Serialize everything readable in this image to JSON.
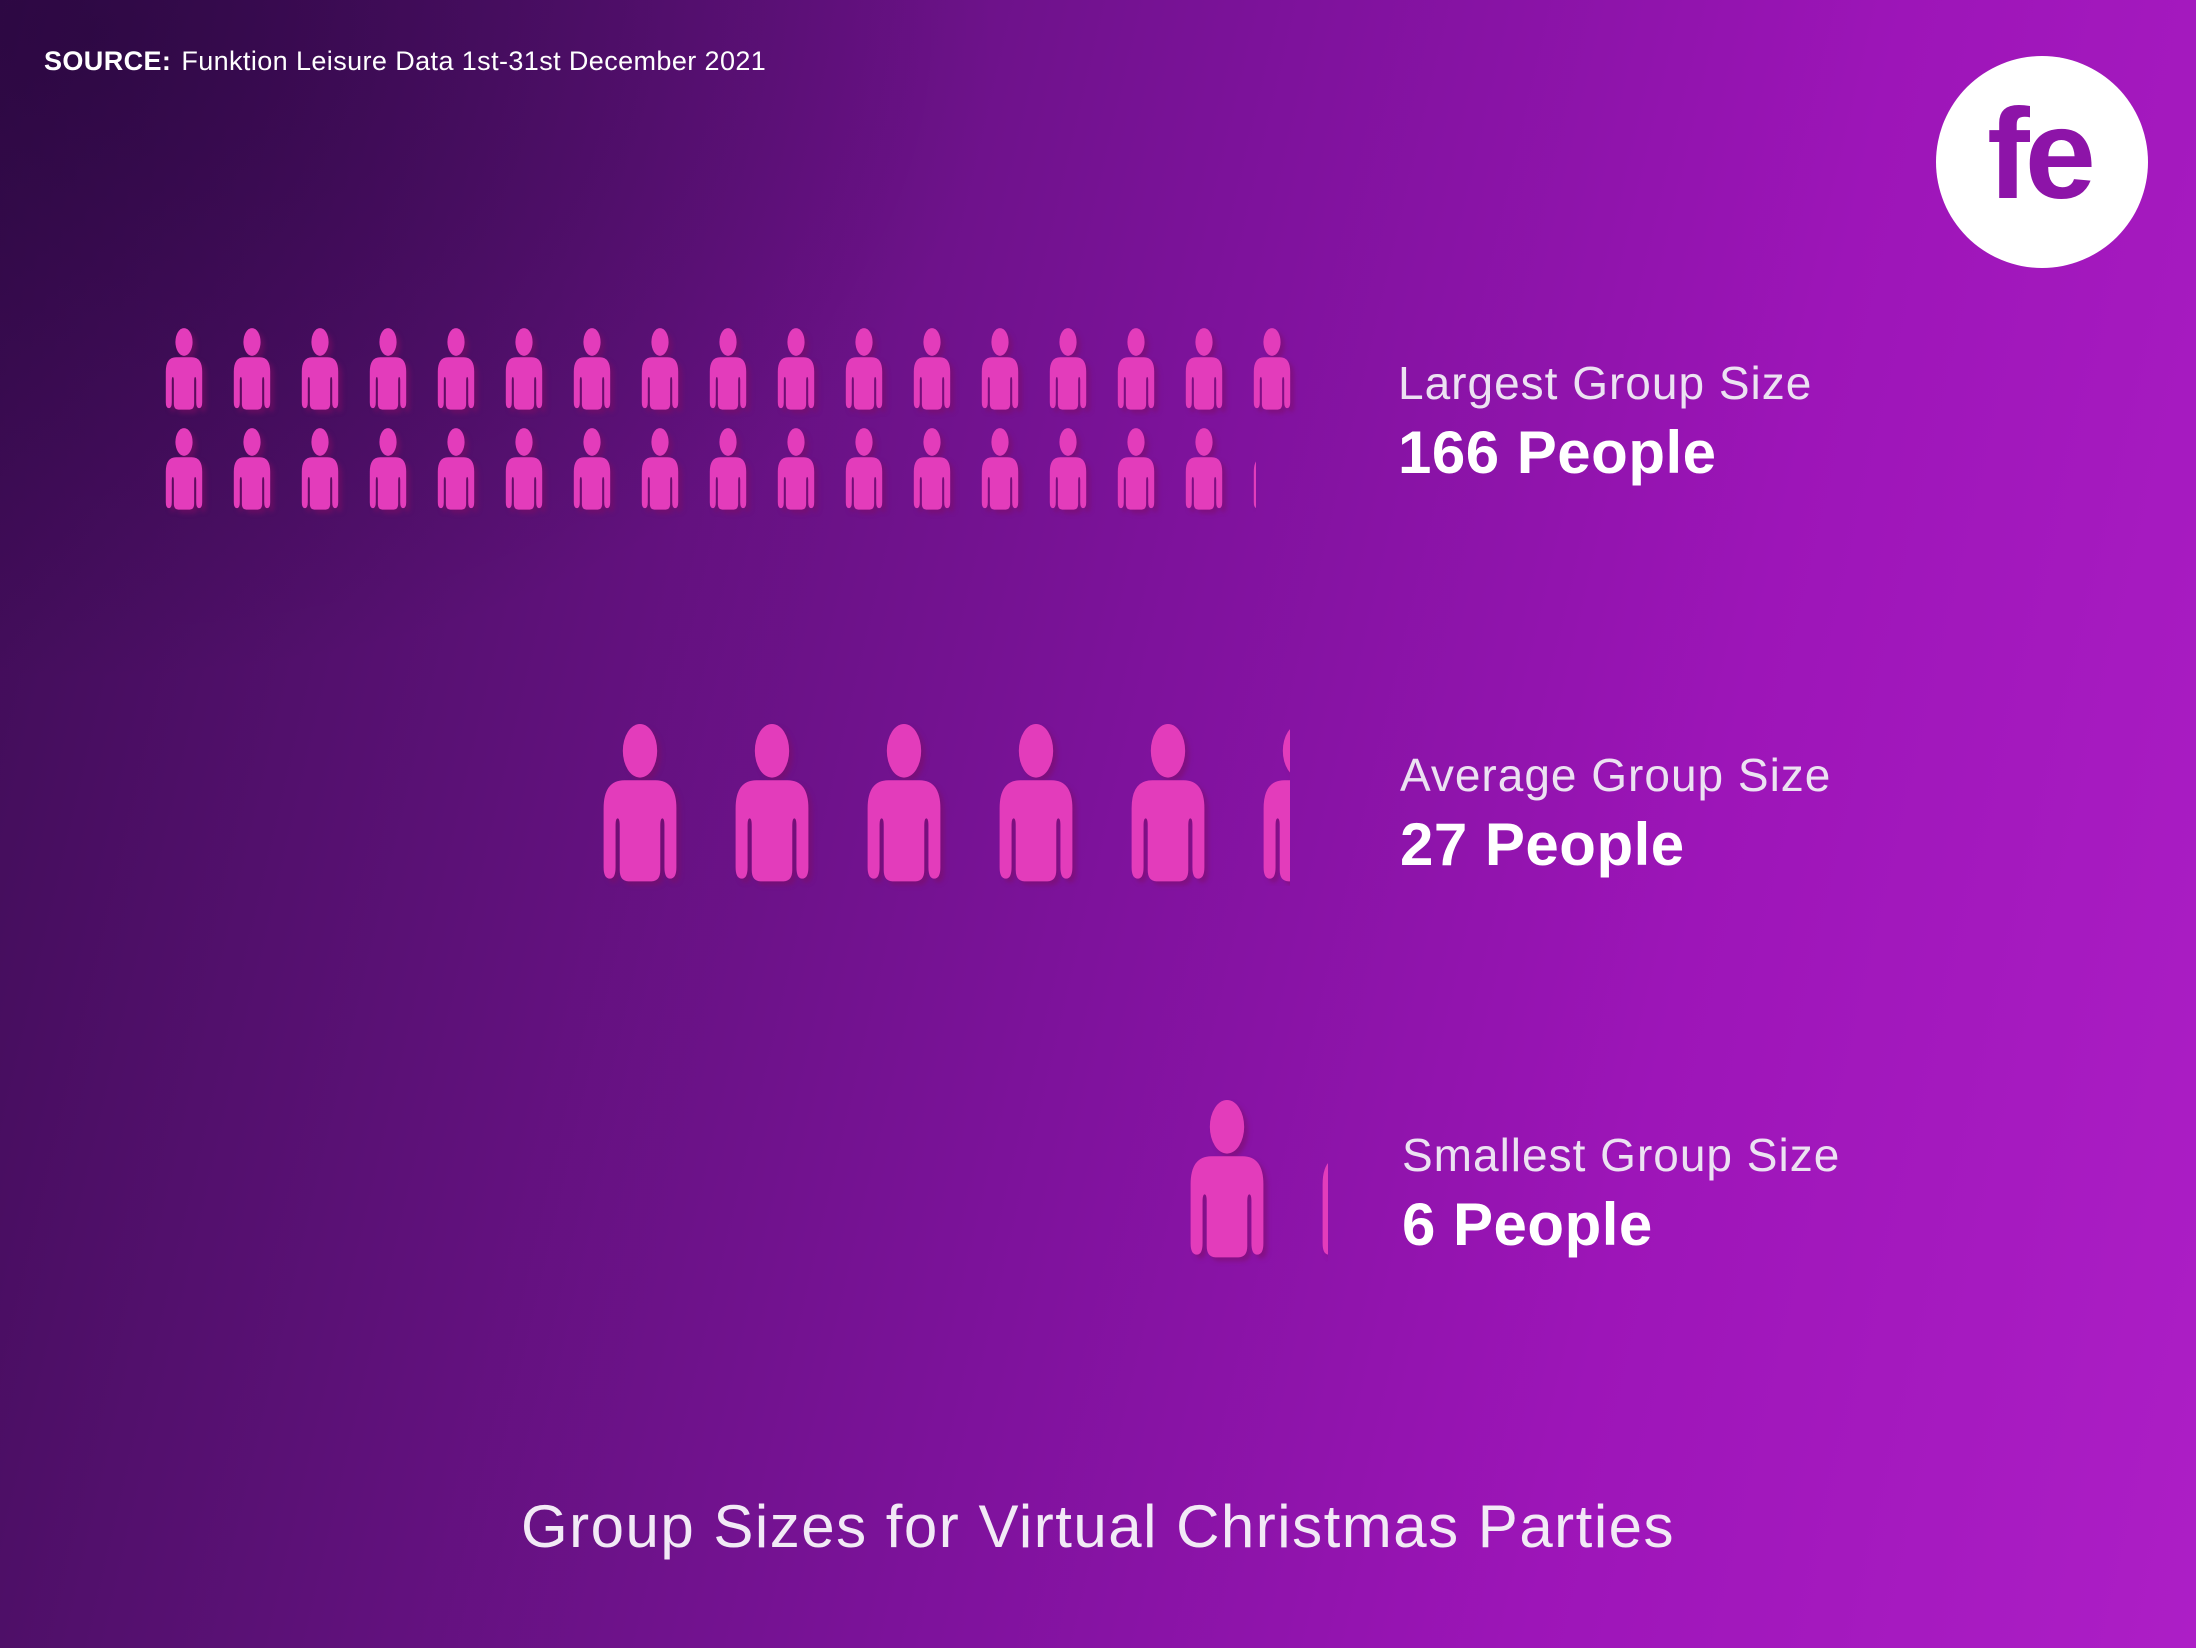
{
  "source": {
    "label": "SOURCE:",
    "text": "Funktion Leisure Data 1st-31st December 2021"
  },
  "logo": {
    "text": "fe"
  },
  "footer_title": "Group Sizes for Virtual Christmas Parties",
  "colors": {
    "background_dark": "#3c0c53",
    "background_bright": "#ad1ec6",
    "person_pink": "#e33cbb",
    "person_shadow": "#800c64",
    "logo_letters": "#8d14a8",
    "value_text": "#ffffff",
    "label_text": "#ece2f2"
  },
  "chart_data": {
    "type": "pictogram",
    "title": "Group Sizes for Virtual Christmas Parties",
    "source": "Funktion Leisure Data 1st-31st December 2021",
    "people_per_icon": 5,
    "legend_position": "right-of-rows",
    "rows": [
      {
        "label": "Largest Group Size",
        "value": 166,
        "value_label": "166 People",
        "icon_size": "small",
        "lines": [
          {
            "full": 17,
            "fraction": 0
          },
          {
            "full": 16,
            "fraction": 0.2
          }
        ]
      },
      {
        "label": "Average Group Size",
        "value": 27,
        "value_label": "27 People",
        "icon_size": "large",
        "lines": [
          {
            "full": 5,
            "fraction": 0.4
          }
        ]
      },
      {
        "label": "Smallest Group Size",
        "value": 6,
        "value_label": "6 People",
        "icon_size": "large",
        "lines": [
          {
            "full": 1,
            "fraction": 0.2
          }
        ]
      }
    ]
  }
}
